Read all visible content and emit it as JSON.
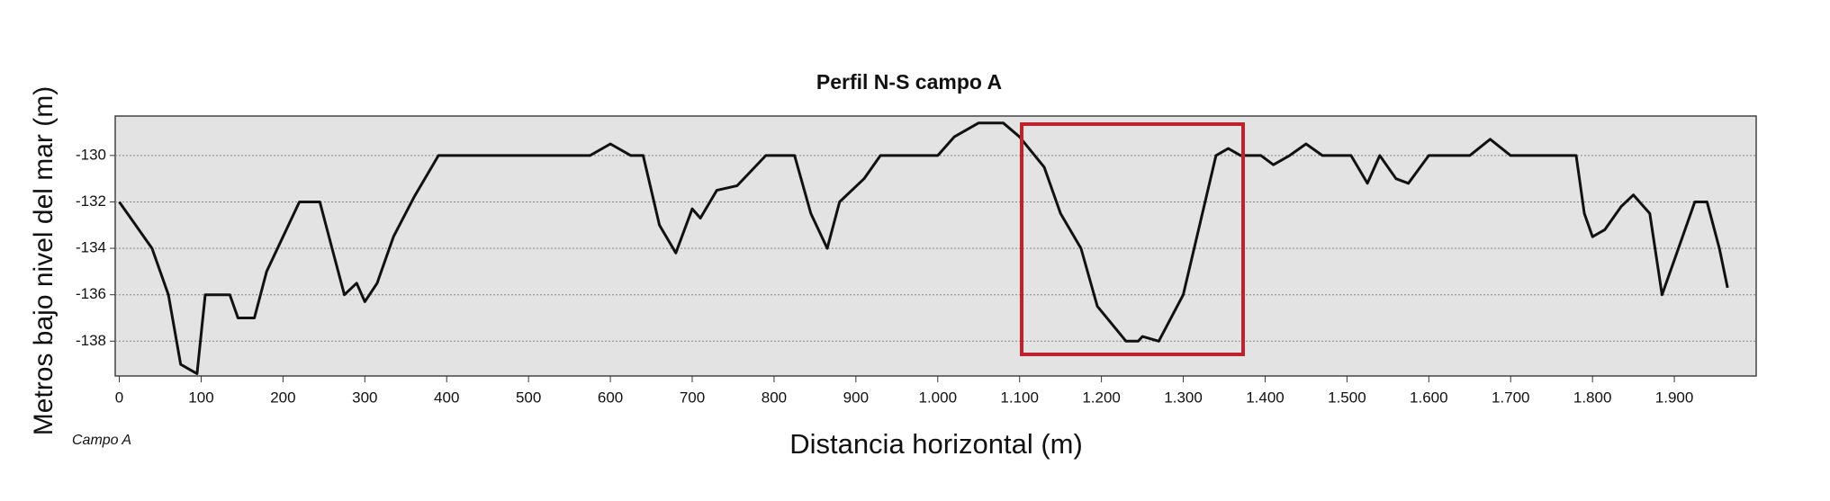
{
  "chart_data": {
    "type": "line",
    "title": "Perfil N-S campo A",
    "x_label": "Distancia horizontal (m)",
    "y_label": "Metros bajo nivel del mar (m)",
    "annotation": "Campo A",
    "x": [
      0,
      10,
      20,
      40,
      60,
      75,
      85,
      95,
      105,
      135,
      145,
      165,
      180,
      200,
      220,
      245,
      260,
      275,
      290,
      300,
      315,
      335,
      360,
      390,
      575,
      600,
      625,
      640,
      660,
      680,
      700,
      710,
      730,
      755,
      790,
      825,
      845,
      865,
      880,
      910,
      930,
      1000,
      1020,
      1050,
      1080,
      1100,
      1130,
      1150,
      1175,
      1195,
      1230,
      1245,
      1250,
      1270,
      1300,
      1320,
      1340,
      1355,
      1370,
      1395,
      1410,
      1430,
      1450,
      1470,
      1505,
      1525,
      1540,
      1560,
      1575,
      1600,
      1650,
      1675,
      1700,
      1780,
      1790,
      1800,
      1815,
      1835,
      1850,
      1870,
      1885,
      1900,
      1925,
      1940,
      1955,
      1965
    ],
    "series": [
      {
        "name": "Perfil",
        "color": "#111111",
        "values": [
          -132,
          -132.5,
          -133,
          -134,
          -136,
          -139,
          -139.2,
          -139.4,
          -136,
          -136,
          -137,
          -137,
          -135,
          -133.5,
          -132,
          -132,
          -134,
          -136,
          -135.5,
          -136.3,
          -135.5,
          -133.5,
          -131.8,
          -130,
          -130,
          -129.5,
          -130,
          -130,
          -133,
          -134.2,
          -132.3,
          -132.7,
          -131.5,
          -131.3,
          -130,
          -130,
          -132.5,
          -134,
          -132,
          -131,
          -130,
          -130,
          -129.2,
          -128.6,
          -128.6,
          -129.2,
          -130.5,
          -132.5,
          -134,
          -136.5,
          -138,
          -138,
          -137.8,
          -138,
          -136,
          -133,
          -130,
          -129.7,
          -130,
          -130,
          -130.4,
          -130,
          -129.5,
          -130,
          -130,
          -131.2,
          -130,
          -131,
          -131.2,
          -130,
          -130,
          -129.3,
          -130,
          -130,
          -132.5,
          -133.5,
          -133.2,
          -132.2,
          -131.7,
          -132.5,
          -136,
          -134.5,
          -132,
          -132,
          -134,
          -135.7
        ]
      }
    ],
    "xlim": [
      -5,
      2000
    ],
    "ylim": [
      -139.5,
      -128.3
    ],
    "xticks": [
      0,
      100,
      200,
      300,
      400,
      500,
      600,
      700,
      800,
      900,
      {
        "value": 1000,
        "label": "1.000"
      },
      {
        "value": 1100,
        "label": "1.100"
      },
      {
        "value": 1200,
        "label": "1.200"
      },
      {
        "value": 1300,
        "label": "1.300"
      },
      {
        "value": 1400,
        "label": "1.400"
      },
      {
        "value": 1500,
        "label": "1.500"
      },
      {
        "value": 1600,
        "label": "1.600"
      },
      {
        "value": 1700,
        "label": "1.700"
      },
      {
        "value": 1800,
        "label": "1.800"
      },
      {
        "value": 1900,
        "label": "1.900"
      }
    ],
    "yticks": [
      -138,
      -136,
      -134,
      -132,
      -130
    ],
    "grid": true
  }
}
